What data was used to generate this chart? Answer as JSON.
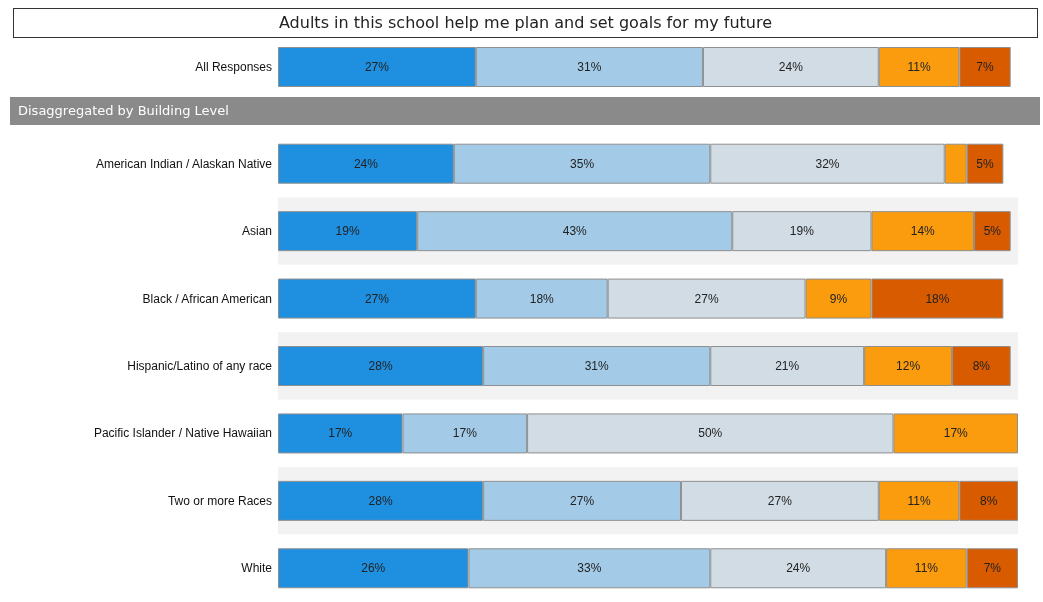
{
  "chart_data": {
    "type": "bar",
    "orientation": "horizontal",
    "stacked": true,
    "title": "Adults in this school help me plan and set goals for my future",
    "annotations": [
      "Disaggregated by Building Level"
    ],
    "categories": [
      "All Responses",
      "American Indian / Alaskan Native",
      "Asian",
      "Black / African American",
      "Hispanic/Latino of any race",
      "Pacific Islander / Native Hawaiian",
      "Two or more Races",
      "White"
    ],
    "series": [
      {
        "color": "#1f8fe0",
        "values": [
          27,
          24,
          19,
          27,
          28,
          17,
          28,
          26
        ],
        "value_labels": [
          "27%",
          "24%",
          "19%",
          "27%",
          "28%",
          "17%",
          "28%",
          "26%"
        ]
      },
      {
        "color": "#a3cbe8",
        "values": [
          31,
          35,
          43,
          18,
          31,
          17,
          27,
          33
        ],
        "value_labels": [
          "31%",
          "35%",
          "43%",
          "18%",
          "31%",
          "17%",
          "27%",
          "33%"
        ]
      },
      {
        "color": "#d1dce5",
        "values": [
          24,
          32,
          19,
          27,
          21,
          50,
          27,
          24
        ],
        "value_labels": [
          "24%",
          "32%",
          "19%",
          "27%",
          "21%",
          "50%",
          "27%",
          "24%"
        ]
      },
      {
        "color": "#fa9c0e",
        "values": [
          11,
          3,
          14,
          9,
          12,
          17,
          11,
          11
        ],
        "value_labels": [
          "11%",
          null,
          "14%",
          "9%",
          "12%",
          "17%",
          "11%",
          "11%"
        ]
      },
      {
        "color": "#d95b00",
        "values": [
          7,
          5,
          5,
          18,
          8,
          null,
          8,
          7
        ],
        "value_labels": [
          "7%",
          "5%",
          "5%",
          "18%",
          "8%",
          null,
          "8%",
          "7%"
        ]
      }
    ]
  }
}
